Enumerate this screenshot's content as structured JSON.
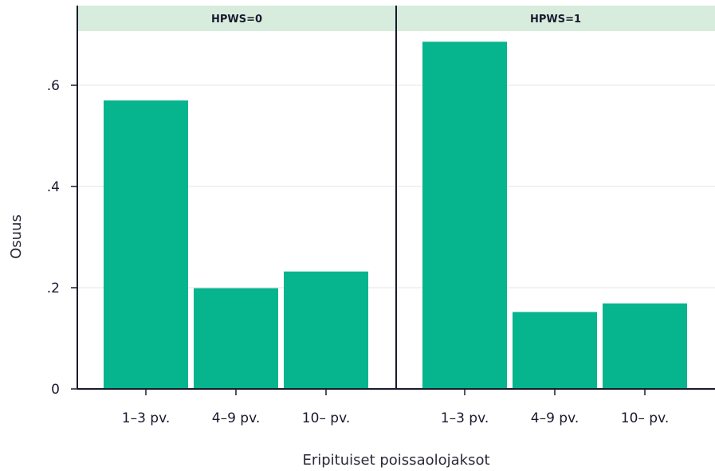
{
  "chart_data": {
    "type": "bar",
    "ylabel": "Osuus",
    "xlabel": "Eripituiset poissaolojaksot",
    "ylim": [
      0,
      0.72
    ],
    "yticks": [
      {
        "value": 0,
        "label": "0"
      },
      {
        "value": 0.2,
        "label": ".2"
      },
      {
        "value": 0.4,
        "label": ".4"
      },
      {
        "value": 0.6,
        "label": ".6"
      }
    ],
    "grid": true,
    "colors": {
      "bar": "#06b48e",
      "strip": "#d7ecdd",
      "axis": "#1a1a2e",
      "grid": "#e4e4e4"
    },
    "panels": [
      {
        "title": "HPWS=0",
        "categories": [
          "1–3 pv.",
          "4–9 pv.",
          "10– pv."
        ],
        "values": [
          0.57,
          0.199,
          0.232
        ]
      },
      {
        "title": "HPWS=1",
        "categories": [
          "1–3 pv.",
          "4–9 pv.",
          "10– pv."
        ],
        "values": [
          0.686,
          0.152,
          0.169
        ]
      }
    ]
  }
}
